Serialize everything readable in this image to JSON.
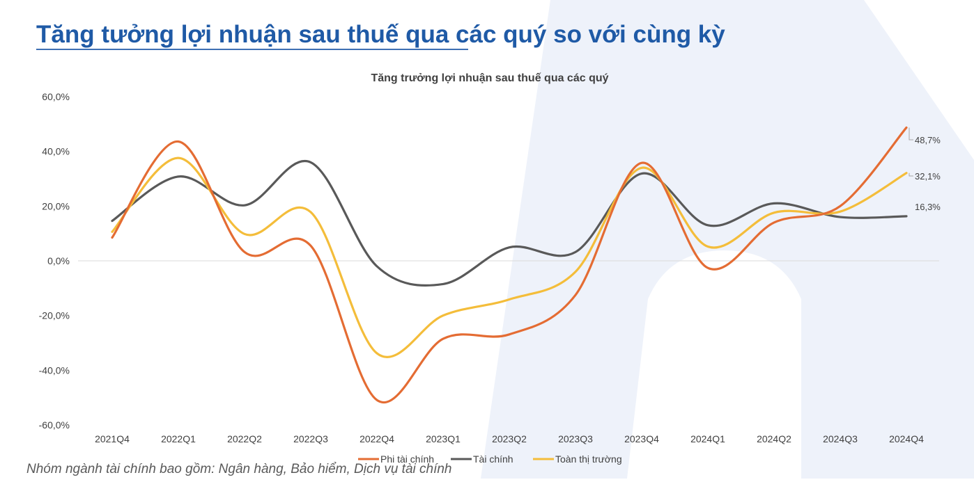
{
  "page": {
    "title": "Tăng tưởng lợi nhuận sau thuế qua các quý so với cùng kỳ",
    "footnote": "Nhóm ngành tài chính bao gồm: Ngân hàng, Bảo hiểm, Dịch vụ tài chính",
    "accent_color": "#1f5aa6"
  },
  "chart_data": {
    "type": "line",
    "title": "Tăng trưởng lợi nhuận sau thuế qua các quý",
    "categories": [
      "2021Q4",
      "2022Q1",
      "2022Q2",
      "2022Q3",
      "2022Q4",
      "2023Q1",
      "2023Q2",
      "2023Q3",
      "2023Q4",
      "2024Q1",
      "2024Q2",
      "2024Q3",
      "2024Q4"
    ],
    "ylim": [
      -60,
      60
    ],
    "yticks": [
      -60,
      -40,
      -20,
      0,
      20,
      40,
      60
    ],
    "ytick_labels": [
      "-60,0%",
      "-40,0%",
      "-20,0%",
      "0,0%",
      "20,0%",
      "40,0%",
      "60,0%"
    ],
    "grid": false,
    "smooth": true,
    "legend_position": "bottom",
    "series": [
      {
        "name": "Phi tài chính",
        "color": "#e46c33",
        "values": [
          8.5,
          43.6,
          3.2,
          5.5,
          -50.9,
          -28.5,
          -26.9,
          -12.5,
          35.8,
          -2.6,
          14.0,
          20.0,
          48.7
        ],
        "end_label": "48,7%"
      },
      {
        "name": "Tài chính",
        "color": "#595959",
        "values": [
          14.6,
          30.8,
          20.3,
          36.0,
          -2.0,
          -8.5,
          4.9,
          3.2,
          31.9,
          13.0,
          21.0,
          16.0,
          16.3
        ],
        "end_label": "16,3%"
      },
      {
        "name": "Toàn thị trường",
        "color": "#f4bd3a",
        "values": [
          10.6,
          37.6,
          9.8,
          17.8,
          -33.8,
          -20.0,
          -14.1,
          -4.0,
          34.0,
          5.2,
          17.6,
          18.0,
          32.1
        ],
        "end_label": "32,1%"
      }
    ]
  }
}
